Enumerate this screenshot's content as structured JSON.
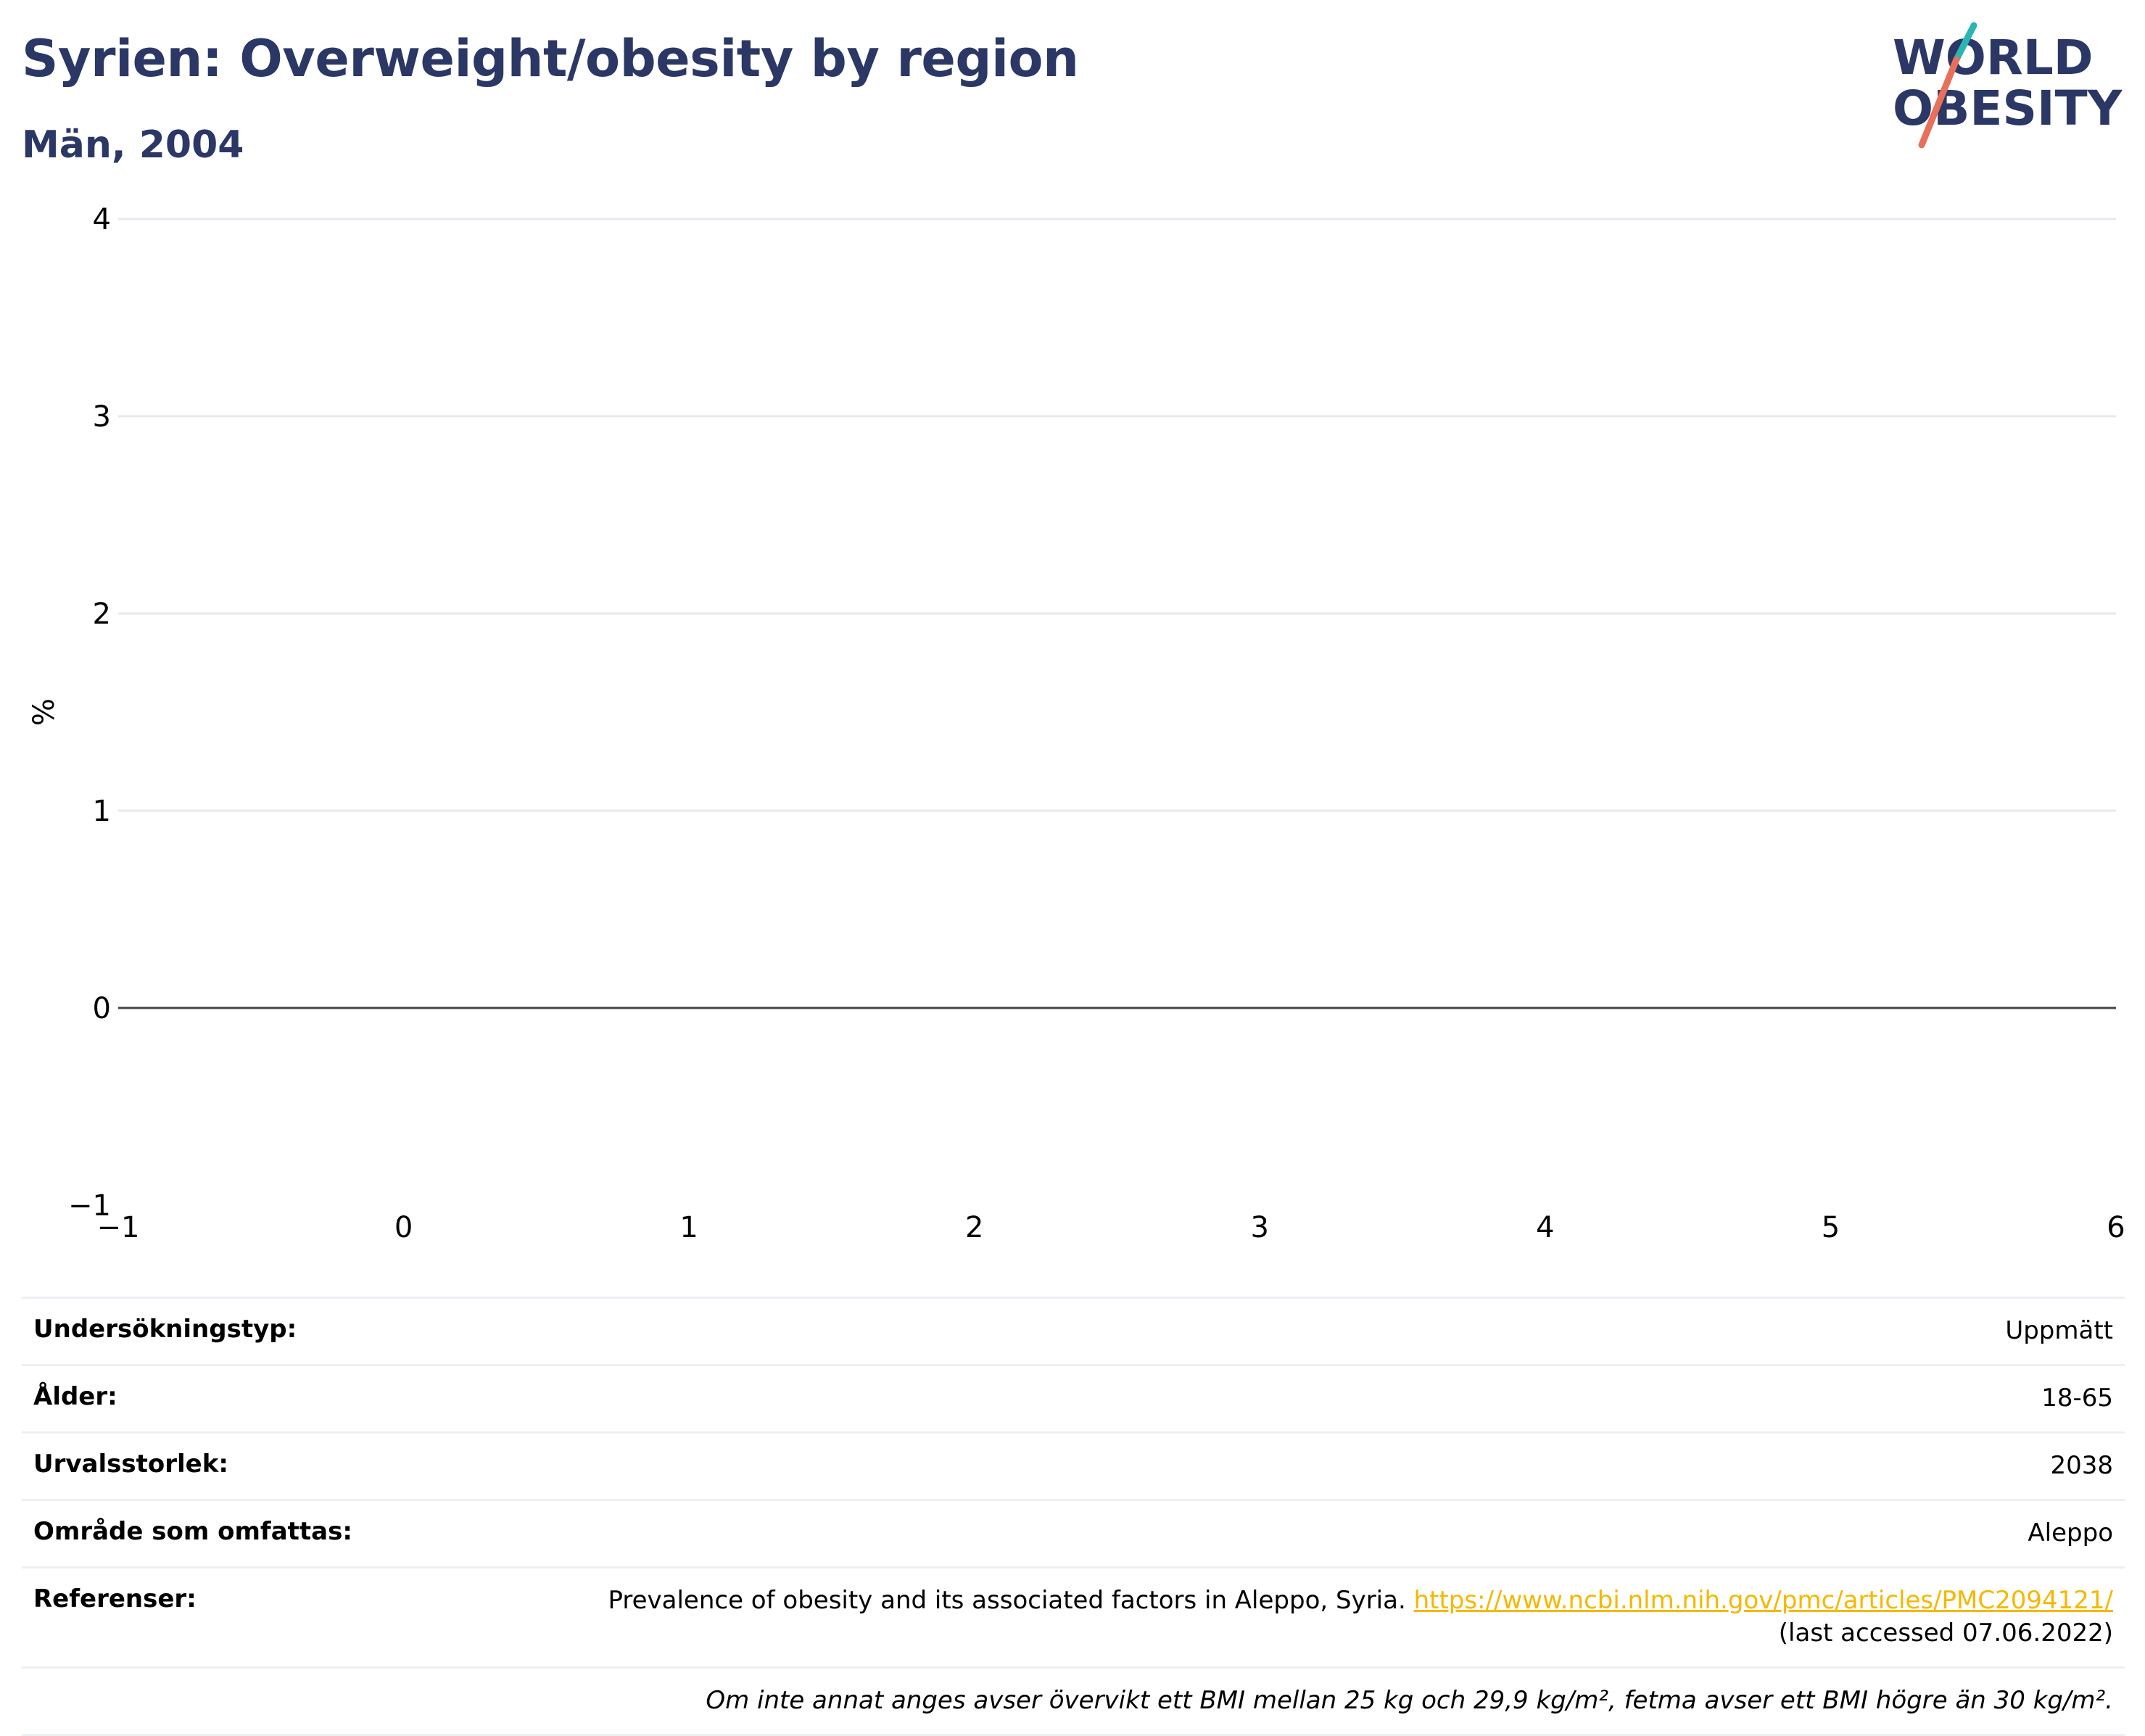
{
  "header": {
    "title": "Syrien: Overweight/obesity by region",
    "subtitle": "Män, 2004"
  },
  "logo": {
    "line1": "WORLD",
    "line2": "OBESITY",
    "colors": {
      "text": "#2b3765",
      "slash_top": "#2bb5b0",
      "slash_bottom": "#e8705b"
    }
  },
  "chart_data": {
    "type": "bar",
    "series": [],
    "xlim": [
      -1,
      6
    ],
    "ylim": [
      -1,
      4
    ],
    "x_ticks": [
      "−1",
      "0",
      "1",
      "2",
      "3",
      "4",
      "5",
      "6"
    ],
    "y_ticks": [
      "−1",
      "0",
      "1",
      "2",
      "3",
      "4"
    ],
    "ylabel": "%",
    "xlabel": "",
    "grid": true,
    "zero_line": true
  },
  "info": {
    "rows": [
      {
        "key": "Undersökningstyp:",
        "value": "Uppmätt"
      },
      {
        "key": "Ålder:",
        "value": "18-65"
      },
      {
        "key": "Urvalsstorlek:",
        "value": "2038"
      },
      {
        "key": "Område som omfattas:",
        "value": "Aleppo"
      }
    ],
    "reference": {
      "key": "Referenser:",
      "text": "Prevalence of obesity and its associated factors in Aleppo, Syria.",
      "url": "https://www.ncbi.nlm.nih.gov/pmc/articles/PMC2094121/",
      "suffix": "(last accessed 07.06.2022)"
    },
    "note": "Om inte annat anges avser övervikt ett BMI mellan 25 kg och 29,9 kg/m², fetma avser ett BMI högre än 30 kg/m²."
  },
  "colors": {
    "title": "#2b3765",
    "grid": "#e6e9ef",
    "zero_line": "#444444",
    "link": "#f5b800"
  }
}
